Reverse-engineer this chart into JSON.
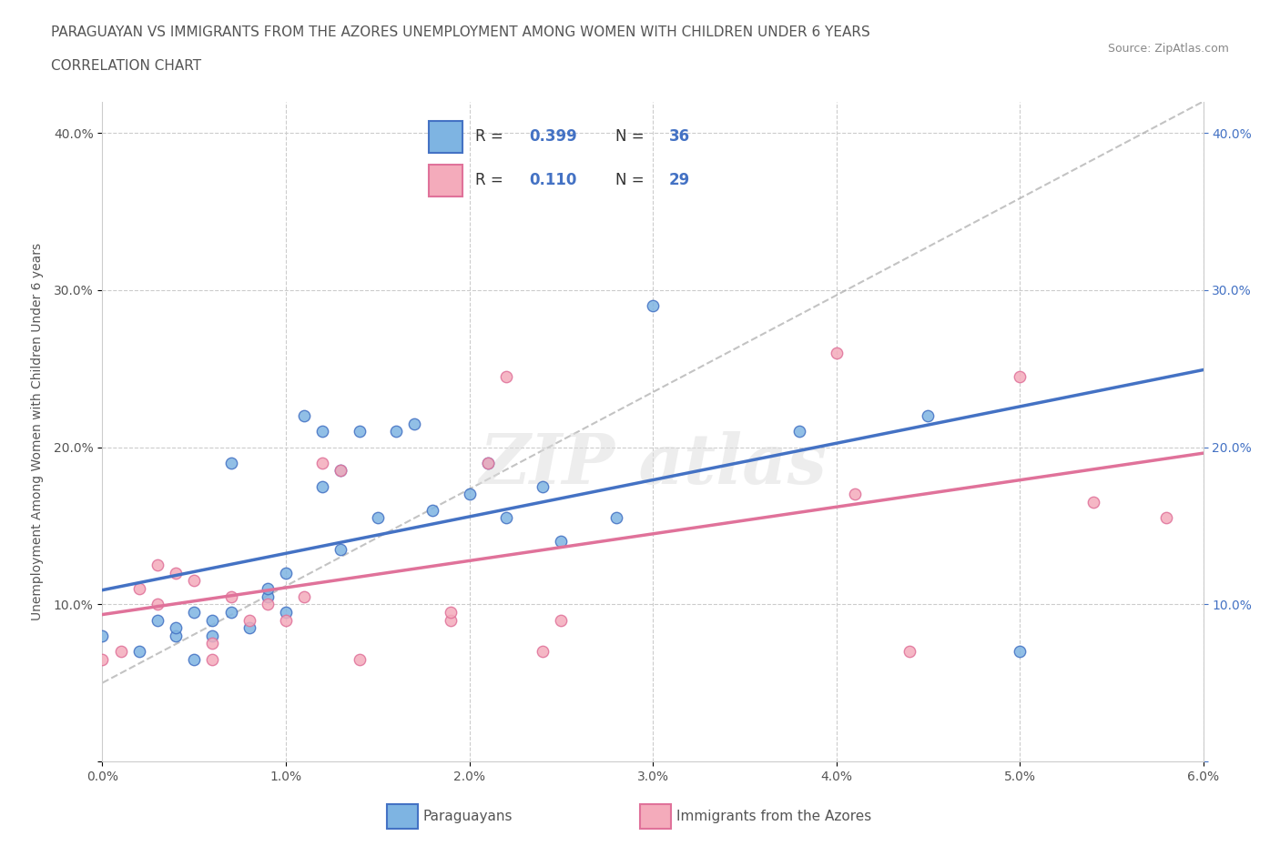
{
  "title_line1": "PARAGUAYAN VS IMMIGRANTS FROM THE AZORES UNEMPLOYMENT AMONG WOMEN WITH CHILDREN UNDER 6 YEARS",
  "title_line2": "CORRELATION CHART",
  "source_text": "Source: ZipAtlas.com",
  "ylabel": "Unemployment Among Women with Children Under 6 years",
  "legend_label1": "Paraguayans",
  "legend_label2": "Immigrants from the Azores",
  "r1": 0.399,
  "n1": 36,
  "r2": 0.11,
  "n2": 29,
  "blue_color": "#7EB4E2",
  "pink_color": "#F4ABBB",
  "blue_line_color": "#4472C4",
  "pink_line_color": "#E0729A",
  "dashed_line_color": "#AAAAAA",
  "xlim": [
    0.0,
    0.06
  ],
  "ylim": [
    0.0,
    0.42
  ],
  "ytick_positions": [
    0.0,
    0.1,
    0.2,
    0.3,
    0.4
  ],
  "paraguayan_x": [
    0.0,
    0.002,
    0.003,
    0.004,
    0.004,
    0.005,
    0.005,
    0.006,
    0.006,
    0.007,
    0.007,
    0.008,
    0.009,
    0.009,
    0.01,
    0.01,
    0.011,
    0.012,
    0.012,
    0.013,
    0.013,
    0.014,
    0.015,
    0.016,
    0.017,
    0.018,
    0.02,
    0.021,
    0.022,
    0.024,
    0.025,
    0.028,
    0.03,
    0.038,
    0.045,
    0.05
  ],
  "paraguayan_y": [
    0.08,
    0.07,
    0.09,
    0.08,
    0.085,
    0.065,
    0.095,
    0.08,
    0.09,
    0.19,
    0.095,
    0.085,
    0.105,
    0.11,
    0.095,
    0.12,
    0.22,
    0.21,
    0.175,
    0.185,
    0.135,
    0.21,
    0.155,
    0.21,
    0.215,
    0.16,
    0.17,
    0.19,
    0.155,
    0.175,
    0.14,
    0.155,
    0.29,
    0.21,
    0.22,
    0.07
  ],
  "azores_x": [
    0.0,
    0.001,
    0.002,
    0.003,
    0.003,
    0.004,
    0.005,
    0.006,
    0.006,
    0.007,
    0.008,
    0.009,
    0.01,
    0.011,
    0.012,
    0.013,
    0.014,
    0.019,
    0.019,
    0.021,
    0.022,
    0.024,
    0.025,
    0.04,
    0.041,
    0.044,
    0.05,
    0.054,
    0.058
  ],
  "azores_y": [
    0.065,
    0.07,
    0.11,
    0.1,
    0.125,
    0.12,
    0.115,
    0.065,
    0.075,
    0.105,
    0.09,
    0.1,
    0.09,
    0.105,
    0.19,
    0.185,
    0.065,
    0.09,
    0.095,
    0.19,
    0.245,
    0.07,
    0.09,
    0.26,
    0.17,
    0.07,
    0.245,
    0.165,
    0.155
  ]
}
